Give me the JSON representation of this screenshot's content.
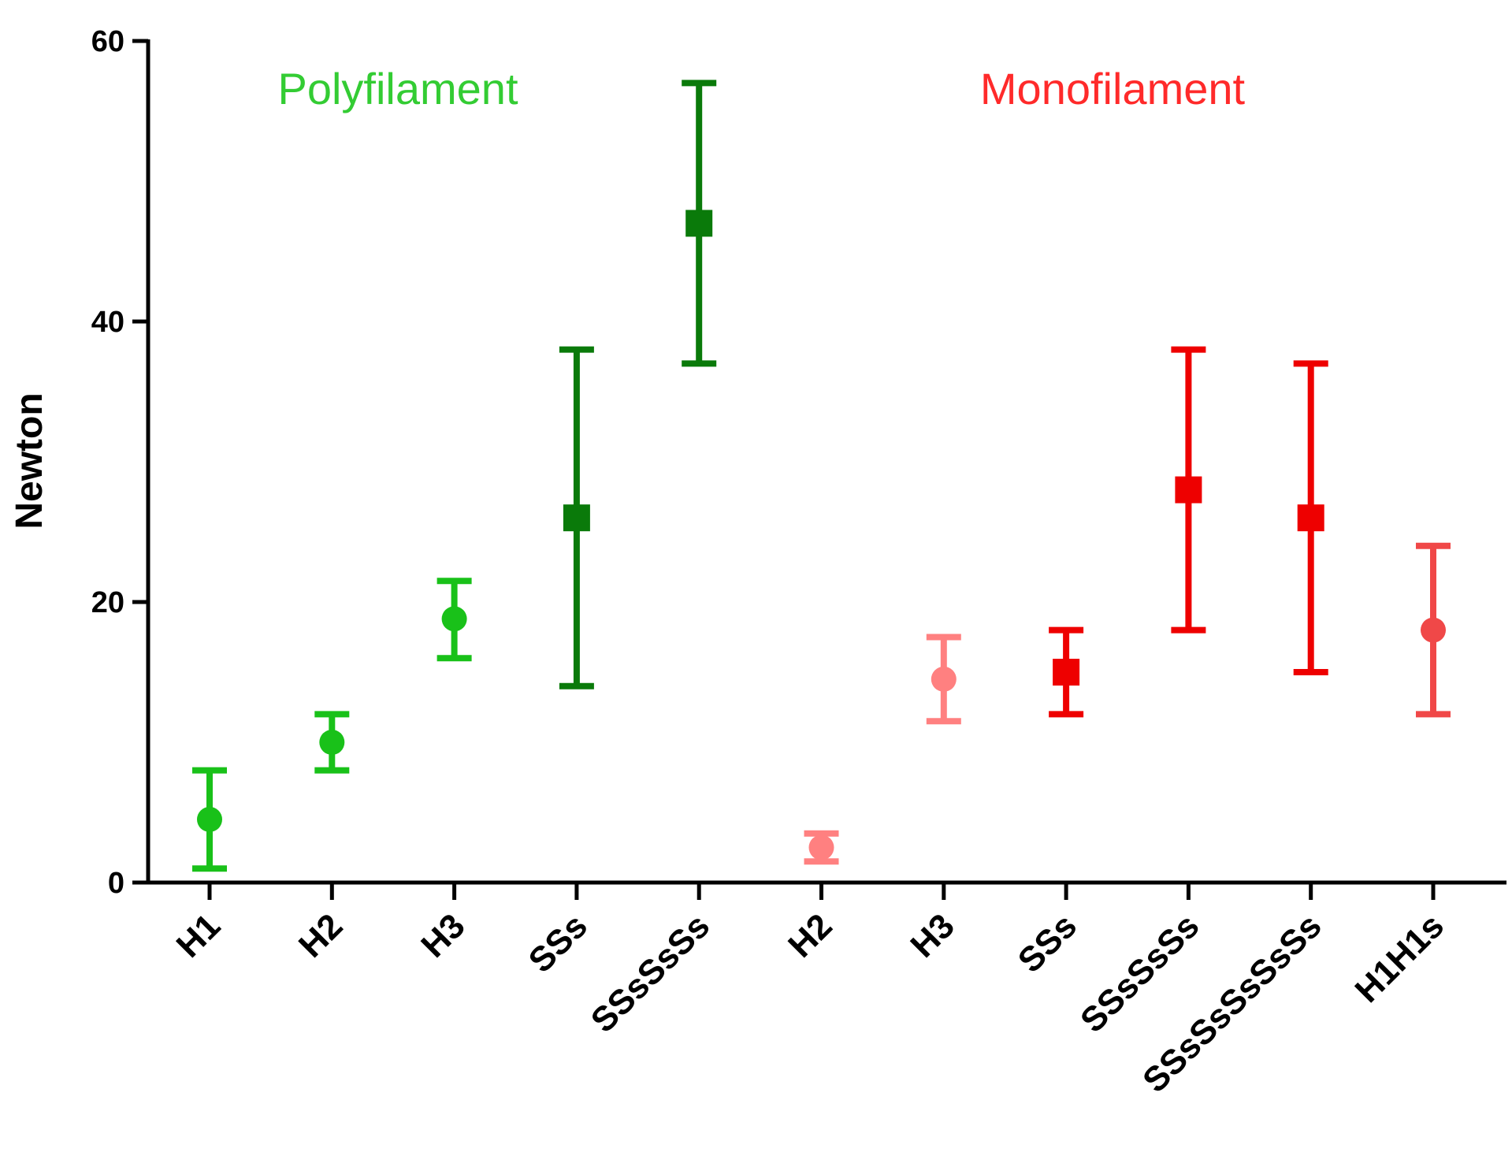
{
  "chart_data": {
    "type": "scatter",
    "title": "",
    "xlabel": "",
    "ylabel": "Newton",
    "ylim": [
      0,
      60
    ],
    "yticks": [
      0,
      20,
      40,
      60
    ],
    "grid": false,
    "groups": [
      {
        "label": "Polyfilament",
        "color": "#33cc33"
      },
      {
        "label": "Monofilament",
        "color": "#ff2a2a"
      }
    ],
    "points": [
      {
        "category": "H1",
        "mean": 4.5,
        "low": 1.0,
        "high": 8.0,
        "color": "#19c119",
        "marker": "circle"
      },
      {
        "category": "H2",
        "mean": 10.0,
        "low": 8.0,
        "high": 12.0,
        "color": "#19c119",
        "marker": "circle"
      },
      {
        "category": "H3",
        "mean": 18.8,
        "low": 16.0,
        "high": 21.5,
        "color": "#19c119",
        "marker": "circle"
      },
      {
        "category": "SSs",
        "mean": 26.0,
        "low": 14.0,
        "high": 38.0,
        "color": "#0a7a0a",
        "marker": "square"
      },
      {
        "category": "SSsSsSs",
        "mean": 47.0,
        "low": 37.0,
        "high": 57.0,
        "color": "#0a7a0a",
        "marker": "square"
      },
      {
        "category": "H2",
        "mean": 2.5,
        "low": 1.5,
        "high": 3.5,
        "color": "#ff8080",
        "marker": "circle"
      },
      {
        "category": "H3",
        "mean": 14.5,
        "low": 11.5,
        "high": 17.5,
        "color": "#ff8080",
        "marker": "circle"
      },
      {
        "category": "SSs",
        "mean": 15.0,
        "low": 12.0,
        "high": 18.0,
        "color": "#ee0000",
        "marker": "square"
      },
      {
        "category": "SSsSsSs",
        "mean": 28.0,
        "low": 18.0,
        "high": 38.0,
        "color": "#ee0000",
        "marker": "square"
      },
      {
        "category": "SSsSsSsSsSs",
        "mean": 26.0,
        "low": 15.0,
        "high": 37.0,
        "color": "#ee0000",
        "marker": "square"
      },
      {
        "category": "H1H1s",
        "mean": 18.0,
        "low": 12.0,
        "high": 24.0,
        "color": "#f04848",
        "marker": "circle"
      }
    ]
  }
}
